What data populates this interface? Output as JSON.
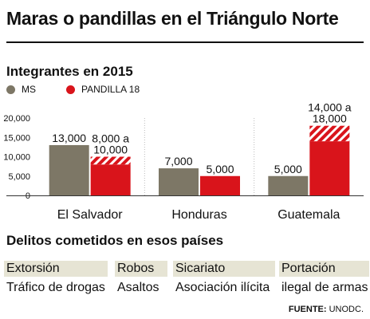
{
  "header": {
    "title": "Maras o pandillas en el Triángulo Norte"
  },
  "chart_section": {
    "subtitle": "Integrantes en 2015"
  },
  "colors": {
    "ms": "#7d7766",
    "p18": "#d9141b",
    "grid": "#bbbbbb",
    "hatch": "#ffffff"
  },
  "chart_data": {
    "type": "bar",
    "title": "Integrantes en 2015",
    "categories": [
      "El Salvador",
      "Honduras",
      "Guatemala"
    ],
    "series": [
      {
        "name": "MS",
        "values": [
          13000,
          7000,
          5000
        ],
        "labels": [
          "13,000",
          "7,000",
          "5,000"
        ]
      },
      {
        "name": "PANDILLA 18",
        "values": [
          10000,
          5000,
          18000
        ],
        "range_low": [
          8000,
          null,
          14000
        ],
        "labels": [
          "8,000 a\n10,000",
          "5,000",
          "14,000 a\n18,000"
        ]
      }
    ],
    "yticks": [
      "20,000",
      "15,000",
      "10,000",
      "5,000",
      "0"
    ],
    "ylim": [
      0,
      20000
    ],
    "legend": "top-left"
  },
  "crimes_section": {
    "title": "Delitos cometidos en esos países",
    "columns": [
      [
        "Extorsión",
        "Tráfico de drogas"
      ],
      [
        "Robos",
        "Asaltos"
      ],
      [
        "Sicariato",
        "Asociación ilícita"
      ],
      [
        "Portación",
        "ilegal de armas"
      ]
    ]
  },
  "source": {
    "label": "FUENTE:",
    "value": "UNODC."
  }
}
